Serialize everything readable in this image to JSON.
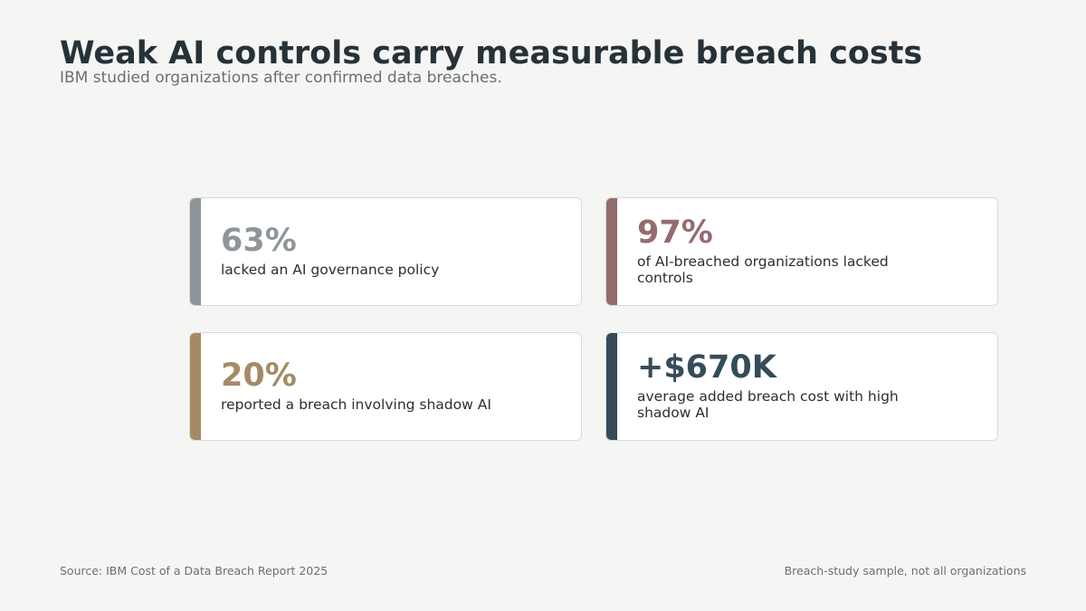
{
  "title": "Weak AI controls carry measurable breach costs",
  "subtitle": "IBM studied organizations after confirmed data breaches.",
  "cards": [
    {
      "stat": "63%",
      "desc": "lacked an AI governance policy",
      "color": "#8e969a"
    },
    {
      "stat": "97%",
      "desc": "of AI-breached organizations lacked controls",
      "color": "#956b6d"
    },
    {
      "stat": "20%",
      "desc": "reported a breach involving shadow AI",
      "color": "#a48a66"
    },
    {
      "stat": "+$670K",
      "desc": "average added breach cost with high shadow AI",
      "color": "#344c5a"
    }
  ],
  "footer": {
    "source": "Source: IBM Cost of a Data Breach Report 2025",
    "note": "Breach-study sample, not all organizations"
  }
}
